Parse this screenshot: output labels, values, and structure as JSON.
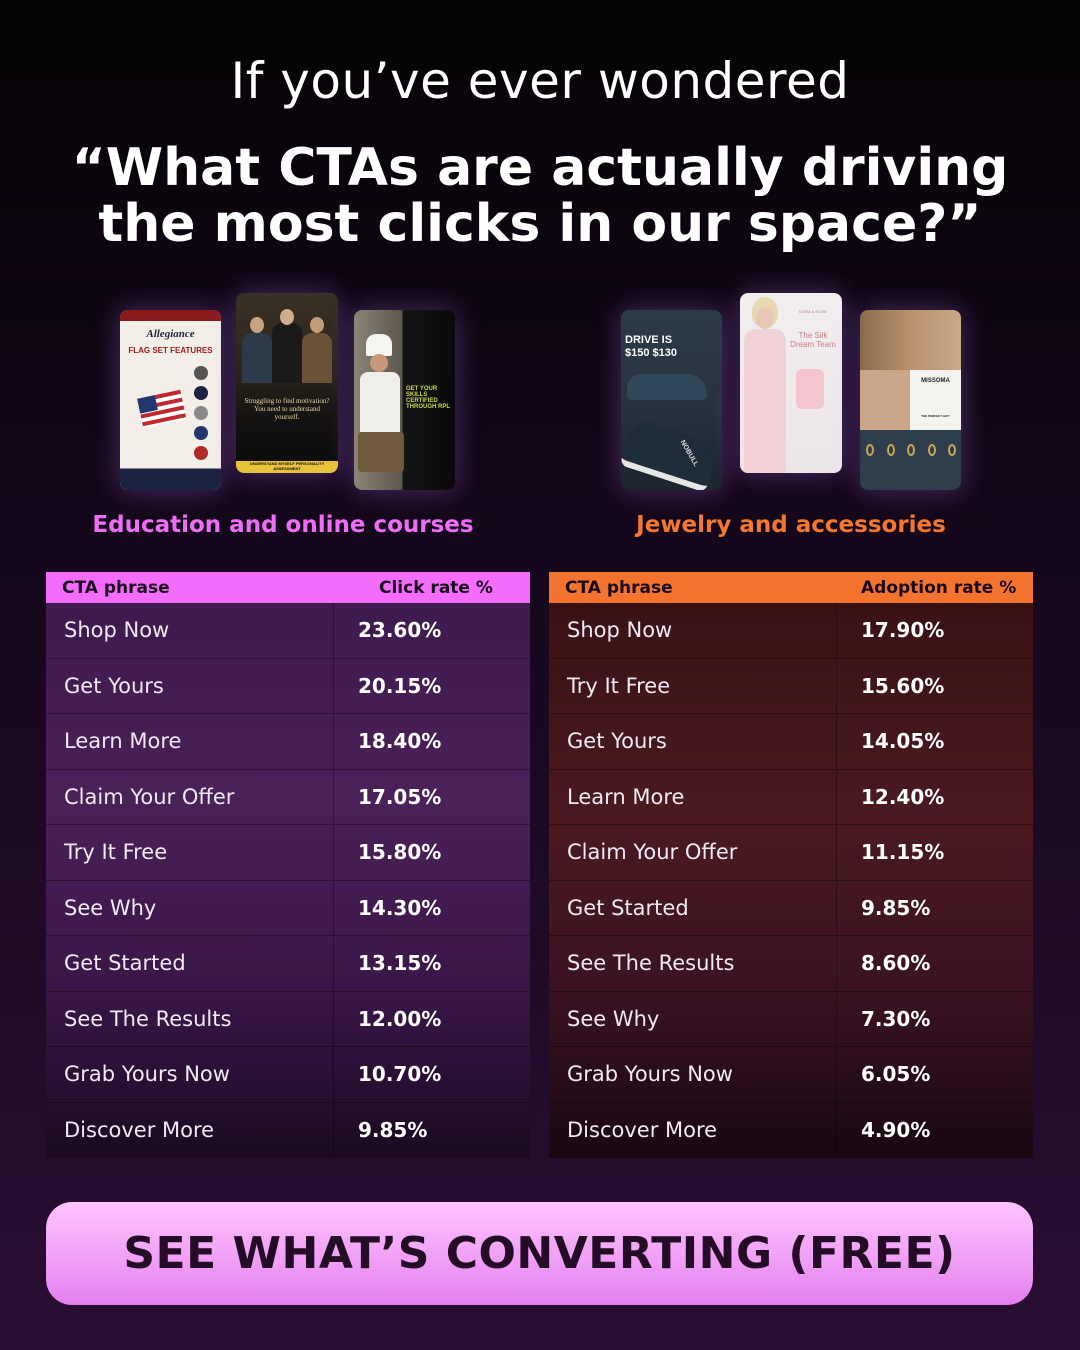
{
  "header": {
    "line1": "If you’ve ever wondered",
    "line2": "“What CTAs are actually driving the most clicks in our space?”"
  },
  "thumbs": {
    "allegiance_brand": "Allegiance",
    "allegiance_heading": "FLAG SET FEATURES",
    "jordan_text": "Struggling to find motivation? You need to understand yourself.",
    "jordan_footer": "UNDERSTAND MYSELF PERSONALITY ASSESSMENT",
    "chef_text": "GET YOUR SKILLS CERTIFIED THROUGH RPL",
    "shoe_text": "DRIVE IS $150 $130",
    "shoe_brand": "NOBULL",
    "silk_brand": "DORA & ROSE",
    "silk_text": "The Silk Dream Team",
    "missoma_brand": "MISSOMA",
    "missoma_text": "THE PERFECT GIFT"
  },
  "categories": {
    "left": "Education and online courses",
    "right": "Jewelry and accessories"
  },
  "colors": {
    "left_accent": "#f46cfb",
    "right_accent": "#f4732f",
    "left_title": "#f06ef7",
    "right_title": "#f5772e"
  },
  "left_table": {
    "col1": "CTA phrase",
    "col2": "Click rate %",
    "rows": [
      {
        "phrase": "Shop Now",
        "rate": "23.60%"
      },
      {
        "phrase": "Get Yours",
        "rate": "20.15%"
      },
      {
        "phrase": "Learn More",
        "rate": "18.40%"
      },
      {
        "phrase": "Claim Your Offer",
        "rate": "17.05%"
      },
      {
        "phrase": "Try It Free",
        "rate": "15.80%"
      },
      {
        "phrase": "See Why",
        "rate": "14.30%"
      },
      {
        "phrase": "Get Started",
        "rate": "13.15%"
      },
      {
        "phrase": "See The Results",
        "rate": "12.00%"
      },
      {
        "phrase": "Grab Yours Now",
        "rate": "10.70%"
      },
      {
        "phrase": "Discover More",
        "rate": "9.85%"
      }
    ]
  },
  "right_table": {
    "col1": "CTA phrase",
    "col2": "Adoption rate %",
    "rows": [
      {
        "phrase": "Shop Now",
        "rate": "17.90%"
      },
      {
        "phrase": "Try It Free",
        "rate": "15.60%"
      },
      {
        "phrase": "Get Yours",
        "rate": "14.05%"
      },
      {
        "phrase": "Learn More",
        "rate": "12.40%"
      },
      {
        "phrase": "Claim Your Offer",
        "rate": "11.15%"
      },
      {
        "phrase": "Get Started",
        "rate": "9.85%"
      },
      {
        "phrase": "See The Results",
        "rate": "8.60%"
      },
      {
        "phrase": "See Why",
        "rate": "7.30%"
      },
      {
        "phrase": "Grab Yours Now",
        "rate": "6.05%"
      },
      {
        "phrase": "Discover More",
        "rate": "4.90%"
      }
    ]
  },
  "cta_button": {
    "label": "SEE WHAT’S CONVERTING (FREE)"
  }
}
